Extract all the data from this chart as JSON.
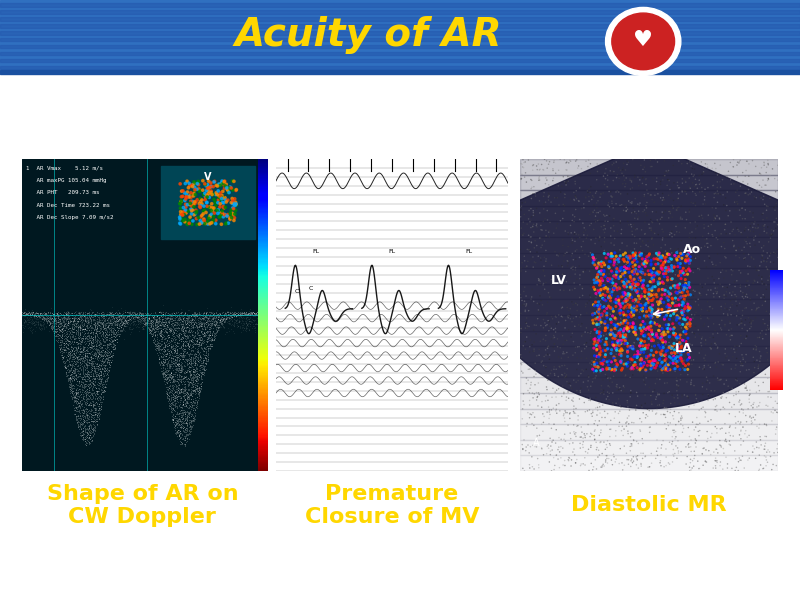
{
  "title": "Acuity of AR",
  "title_color": "#FFD700",
  "title_fontsize": 28,
  "header_bg_color": "#3070C0",
  "bg_color": "#FFFFFF",
  "labels": [
    "Shape of AR on\nCW Doppler",
    "Premature\nClosure of MV",
    "Diastolic MR"
  ],
  "label_color": "#FFD700",
  "label_bg_color": "#4B0082",
  "label_fontsize": 16,
  "accent_line_color": "#1A50A0",
  "panel1_bg": "#001820",
  "panel2_bg": "#888888",
  "panel3_bg": "#111111"
}
